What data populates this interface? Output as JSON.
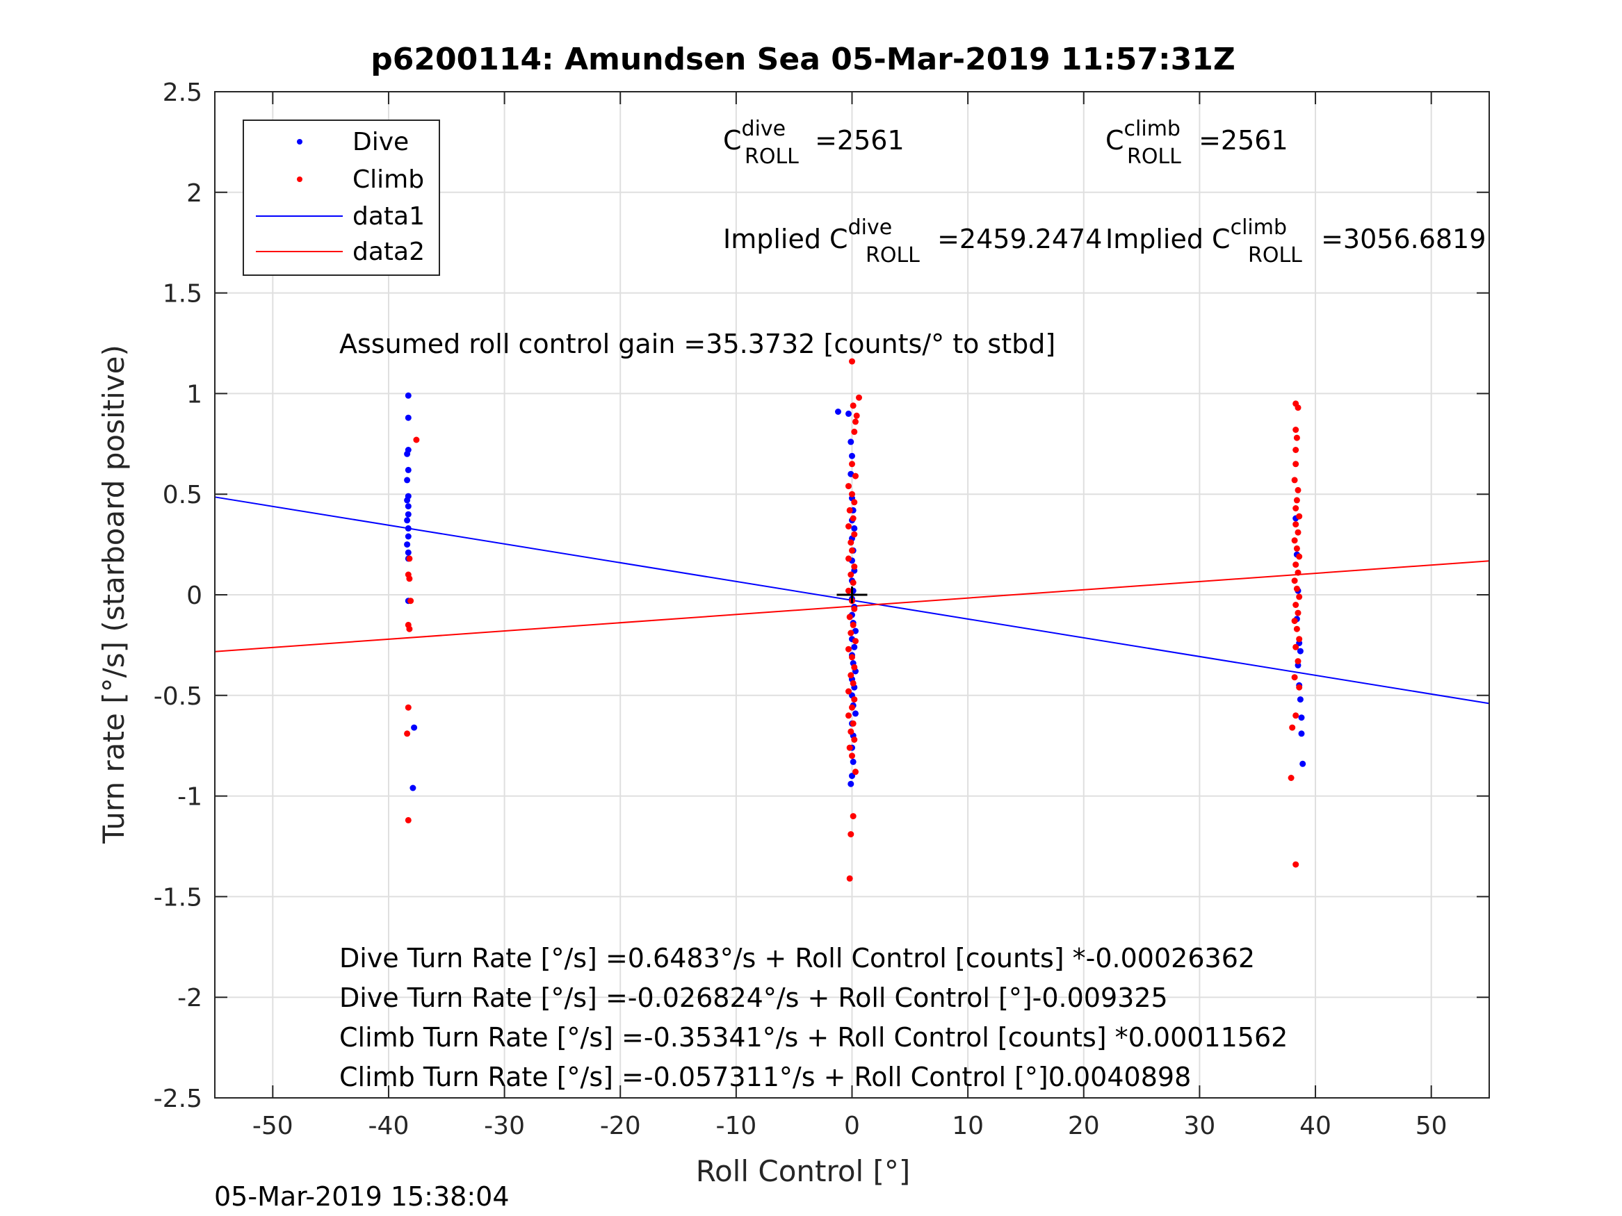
{
  "chart_data": {
    "type": "scatter",
    "title": "p6200114: Amundsen Sea 05-Mar-2019 11:57:31Z",
    "xlabel": "Roll Control [°]",
    "ylabel": "Turn rate [°/s] (starboard positive)",
    "xlim": [
      -55,
      55
    ],
    "ylim": [
      -2.5,
      2.5
    ],
    "xticks": [
      -50,
      -40,
      -30,
      -20,
      -10,
      0,
      10,
      20,
      30,
      40,
      50
    ],
    "yticks": [
      -2.5,
      -2,
      -1.5,
      -1,
      -0.5,
      0,
      0.5,
      1,
      1.5,
      2,
      2.5
    ],
    "xtick_labels": [
      "-50",
      "-40",
      "-30",
      "-20",
      "-10",
      "0",
      "10",
      "20",
      "30",
      "40",
      "50"
    ],
    "ytick_labels": [
      "-2.5",
      "-2",
      "-1.5",
      "-1",
      "-0.5",
      "0",
      "0.5",
      "1",
      "1.5",
      "2",
      "2.5"
    ],
    "grid": true,
    "legend_position": "top-left",
    "legend": [
      "Dive",
      "Climb",
      "data1",
      "data2"
    ],
    "series": [
      {
        "name": "Dive",
        "kind": "points",
        "color": "#0000ff",
        "points": [
          [
            -38.3,
            0.99
          ],
          [
            -38.3,
            0.88
          ],
          [
            -38.3,
            0.72
          ],
          [
            -38.4,
            0.7
          ],
          [
            -38.3,
            0.62
          ],
          [
            -38.4,
            0.57
          ],
          [
            -38.3,
            0.49
          ],
          [
            -38.4,
            0.47
          ],
          [
            -38.3,
            0.44
          ],
          [
            -38.3,
            0.4
          ],
          [
            -38.4,
            0.37
          ],
          [
            -38.3,
            0.33
          ],
          [
            -38.3,
            0.29
          ],
          [
            -38.4,
            0.25
          ],
          [
            -38.3,
            0.21
          ],
          [
            -38.3,
            0.18
          ],
          [
            -38.3,
            -0.03
          ],
          [
            -37.8,
            -0.66
          ],
          [
            -37.9,
            -0.96
          ],
          [
            -1.2,
            0.91
          ],
          [
            -0.3,
            0.9
          ],
          [
            -0.1,
            0.76
          ],
          [
            0.0,
            0.69
          ],
          [
            -0.1,
            0.6
          ],
          [
            0.0,
            0.48
          ],
          [
            0.1,
            0.42
          ],
          [
            0.0,
            0.37
          ],
          [
            0.2,
            0.33
          ],
          [
            0.0,
            0.28
          ],
          [
            0.1,
            0.22
          ],
          [
            0.0,
            0.17
          ],
          [
            0.2,
            0.12
          ],
          [
            0.0,
            0.07
          ],
          [
            0.1,
            0.02
          ],
          [
            0.0,
            -0.02
          ],
          [
            0.2,
            -0.06
          ],
          [
            0.0,
            -0.1
          ],
          [
            0.1,
            -0.14
          ],
          [
            0.3,
            -0.18
          ],
          [
            0.0,
            -0.22
          ],
          [
            0.2,
            -0.26
          ],
          [
            0.0,
            -0.3
          ],
          [
            0.1,
            -0.34
          ],
          [
            0.3,
            -0.38
          ],
          [
            0.0,
            -0.42
          ],
          [
            0.2,
            -0.46
          ],
          [
            0.0,
            -0.5
          ],
          [
            0.1,
            -0.55
          ],
          [
            0.3,
            -0.59
          ],
          [
            0.0,
            -0.64
          ],
          [
            0.1,
            -0.7
          ],
          [
            0.0,
            -0.76
          ],
          [
            0.1,
            -0.83
          ],
          [
            0.0,
            -0.9
          ],
          [
            -0.1,
            -0.94
          ],
          [
            38.3,
            0.38
          ],
          [
            38.4,
            0.2
          ],
          [
            38.5,
            0.02
          ],
          [
            38.4,
            -0.12
          ],
          [
            38.6,
            -0.24
          ],
          [
            38.7,
            -0.28
          ],
          [
            38.5,
            -0.35
          ],
          [
            38.6,
            -0.45
          ],
          [
            38.7,
            -0.52
          ],
          [
            38.8,
            -0.61
          ],
          [
            38.8,
            -0.69
          ],
          [
            38.9,
            -0.84
          ]
        ]
      },
      {
        "name": "Climb",
        "kind": "points",
        "color": "#ff0000",
        "points": [
          [
            -37.6,
            0.77
          ],
          [
            -38.2,
            0.18
          ],
          [
            -38.3,
            0.1
          ],
          [
            -38.2,
            0.08
          ],
          [
            -38.1,
            -0.03
          ],
          [
            -38.3,
            -0.15
          ],
          [
            -38.2,
            -0.17
          ],
          [
            -38.3,
            -0.56
          ],
          [
            -38.4,
            -0.69
          ],
          [
            -38.3,
            -1.12
          ],
          [
            0.6,
            0.98
          ],
          [
            0.0,
            1.16
          ],
          [
            0.1,
            0.94
          ],
          [
            0.4,
            0.89
          ],
          [
            0.3,
            0.86
          ],
          [
            0.2,
            0.81
          ],
          [
            0.0,
            0.65
          ],
          [
            0.3,
            0.59
          ],
          [
            -0.3,
            0.54
          ],
          [
            0.0,
            0.5
          ],
          [
            0.2,
            0.46
          ],
          [
            -0.2,
            0.42
          ],
          [
            0.1,
            0.38
          ],
          [
            -0.3,
            0.34
          ],
          [
            0.2,
            0.3
          ],
          [
            -0.1,
            0.26
          ],
          [
            0.0,
            0.22
          ],
          [
            -0.3,
            0.18
          ],
          [
            0.2,
            0.14
          ],
          [
            -0.1,
            0.1
          ],
          [
            0.1,
            0.06
          ],
          [
            -0.3,
            0.02
          ],
          [
            0.0,
            -0.03
          ],
          [
            0.2,
            -0.07
          ],
          [
            -0.2,
            -0.11
          ],
          [
            0.1,
            -0.15
          ],
          [
            -0.1,
            -0.19
          ],
          [
            0.3,
            -0.23
          ],
          [
            -0.3,
            -0.27
          ],
          [
            0.0,
            -0.31
          ],
          [
            0.2,
            -0.36
          ],
          [
            -0.1,
            -0.4
          ],
          [
            0.1,
            -0.44
          ],
          [
            -0.3,
            -0.48
          ],
          [
            0.2,
            -0.52
          ],
          [
            0.0,
            -0.56
          ],
          [
            -0.3,
            -0.6
          ],
          [
            0.1,
            -0.64
          ],
          [
            -0.1,
            -0.68
          ],
          [
            0.2,
            -0.72
          ],
          [
            -0.2,
            -0.76
          ],
          [
            0.0,
            -0.8
          ],
          [
            0.3,
            -0.88
          ],
          [
            0.1,
            -1.1
          ],
          [
            -0.1,
            -1.19
          ],
          [
            -0.2,
            -1.41
          ],
          [
            38.3,
            0.95
          ],
          [
            38.5,
            0.93
          ],
          [
            38.3,
            0.82
          ],
          [
            38.4,
            0.78
          ],
          [
            38.3,
            0.72
          ],
          [
            38.3,
            0.65
          ],
          [
            38.2,
            0.57
          ],
          [
            38.5,
            0.52
          ],
          [
            38.4,
            0.47
          ],
          [
            38.3,
            0.43
          ],
          [
            38.6,
            0.39
          ],
          [
            38.3,
            0.35
          ],
          [
            38.5,
            0.31
          ],
          [
            38.2,
            0.27
          ],
          [
            38.4,
            0.23
          ],
          [
            38.6,
            0.19
          ],
          [
            38.3,
            0.15
          ],
          [
            38.5,
            0.11
          ],
          [
            38.2,
            0.07
          ],
          [
            38.4,
            0.03
          ],
          [
            38.6,
            -0.01
          ],
          [
            38.3,
            -0.05
          ],
          [
            38.5,
            -0.09
          ],
          [
            38.2,
            -0.13
          ],
          [
            38.4,
            -0.17
          ],
          [
            38.6,
            -0.22
          ],
          [
            38.3,
            -0.26
          ],
          [
            38.5,
            -0.33
          ],
          [
            38.2,
            -0.41
          ],
          [
            38.6,
            -0.46
          ],
          [
            38.0,
            -0.66
          ],
          [
            38.3,
            -0.6
          ],
          [
            37.9,
            -0.91
          ],
          [
            38.3,
            -1.34
          ]
        ]
      },
      {
        "name": "data1",
        "kind": "line",
        "color": "#0000ff",
        "x": [
          -55,
          55
        ],
        "y": [
          0.486,
          -0.54
        ]
      },
      {
        "name": "data2",
        "kind": "line",
        "color": "#ff0000",
        "x": [
          -55,
          55
        ],
        "y": [
          -0.282,
          0.168
        ]
      }
    ],
    "annotations": {
      "c_dive_base": "C",
      "c_dive_sup": "dive",
      "c_dive_sub": "ROLL",
      "c_dive_val": " =2561",
      "c_climb_base": "C",
      "c_climb_sup": "climb",
      "c_climb_sub": "ROLL",
      "c_climb_val": " =2561",
      "implied_dive_prefix": "Implied C",
      "implied_dive_sup": "dive",
      "implied_dive_sub": "ROLL",
      "implied_dive_val": " =2459.2474",
      "implied_climb_prefix": "Implied C",
      "implied_climb_sup": "climb",
      "implied_climb_sub": "ROLL",
      "implied_climb_val": " =3056.6819",
      "gain": "Assumed roll control gain =35.3732 [counts/° to stbd]",
      "eq1": "Dive Turn Rate [°/s] =0.6483°/s + Roll Control [counts] *-0.00026362",
      "eq2": "Dive Turn Rate [°/s] =-0.026824°/s + Roll Control [°]-0.009325",
      "eq3": "Climb Turn Rate [°/s] =-0.35341°/s + Roll Control [counts] *0.00011562",
      "eq4": "Climb Turn Rate [°/s] =-0.057311°/s + Roll Control [°]0.0040898"
    },
    "crosshair": [
      0,
      0
    ]
  },
  "footer": {
    "timestamp": "05-Mar-2019 15:38:04"
  }
}
